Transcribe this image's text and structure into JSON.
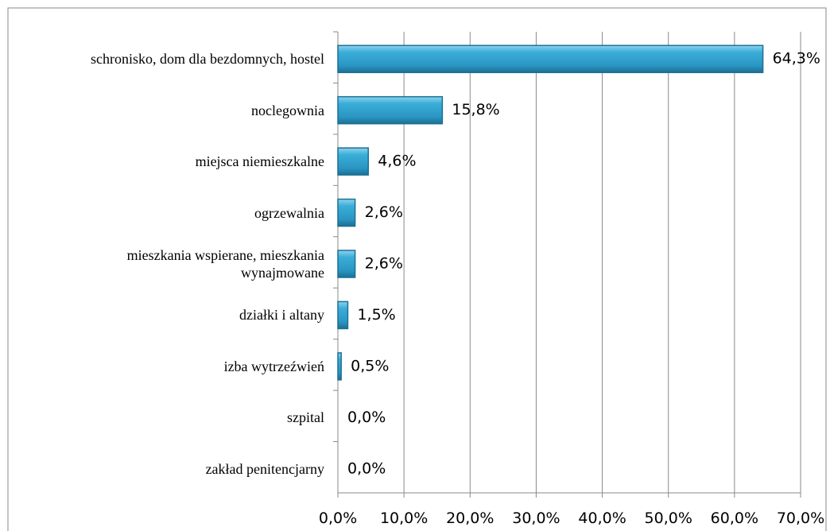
{
  "chart_data": {
    "type": "bar",
    "orientation": "horizontal",
    "categories": [
      "schronisko, dom dla bezdomnych, hostel",
      "noclegownia",
      "miejsca niemieszkalne",
      "ogrzewalnia",
      "mieszkania wspierane, mieszkania\nwynajmowane",
      "działki i altany",
      "izba wytrzeźwień",
      "szpital",
      "zakład penitencjarny"
    ],
    "values": [
      64.3,
      15.8,
      4.6,
      2.6,
      2.6,
      1.5,
      0.5,
      0.0,
      0.0
    ],
    "value_labels": [
      "64,3%",
      "15,8%",
      "4,6%",
      "2,6%",
      "2,6%",
      "1,5%",
      "0,5%",
      "0,0%",
      "0,0%"
    ],
    "color": "#2f9fcc",
    "xlim": [
      0,
      70
    ],
    "xticks": [
      {
        "value": 0,
        "label": "0,0%"
      },
      {
        "value": 10,
        "label": "10,0%"
      },
      {
        "value": 20,
        "label": "20,0%"
      },
      {
        "value": 30,
        "label": "30,0%"
      },
      {
        "value": 40,
        "label": "40,0%"
      },
      {
        "value": 50,
        "label": "50,0%"
      },
      {
        "value": 60,
        "label": "60,0%"
      },
      {
        "value": 70,
        "label": "70,0%"
      }
    ],
    "grid": true
  }
}
